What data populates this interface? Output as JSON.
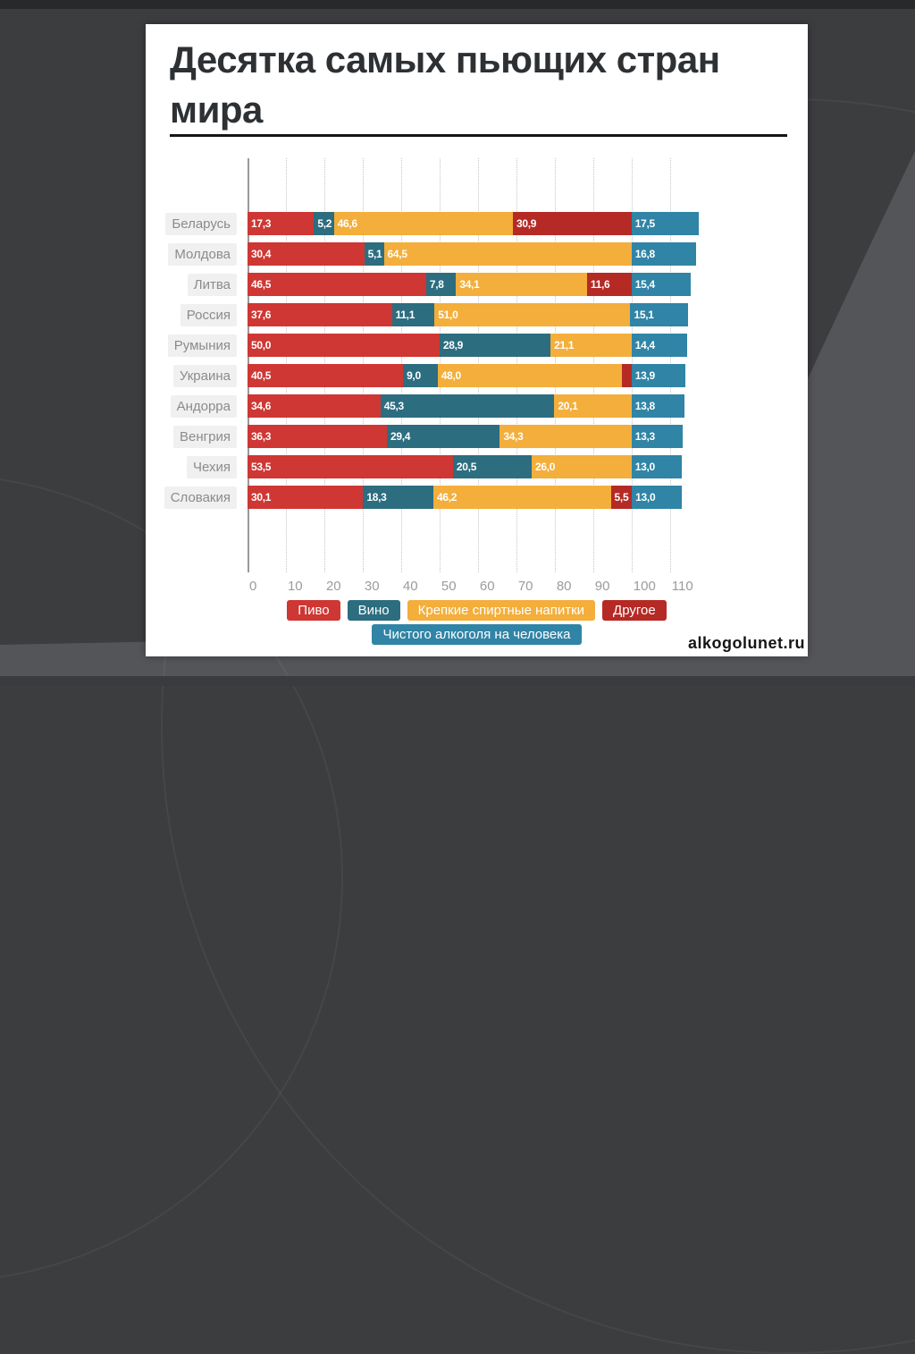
{
  "slide": {
    "title": "Десятка самых пьющих стран мира",
    "watermark": "alkogolunet.ru"
  },
  "chart_data": {
    "type": "bar",
    "orientation": "horizontal",
    "stacked": true,
    "title": "Десятка самых пьющих стран мира",
    "xlabel": "",
    "ylabel": "",
    "axis_max": 117.5,
    "x_ticks": [
      0,
      10,
      20,
      30,
      40,
      50,
      60,
      70,
      80,
      90,
      100,
      110
    ],
    "grid": "dotted-vertical",
    "legend_position": "bottom-center",
    "categories": [
      "Беларусь",
      "Молдова",
      "Литва",
      "Россия",
      "Румыния",
      "Украина",
      "Андорра",
      "Венгрия",
      "Чехия",
      "Словакия"
    ],
    "series": [
      {
        "name": "Пиво",
        "color": "#ce3733",
        "values": [
          17.3,
          30.4,
          46.5,
          37.6,
          50.0,
          40.5,
          34.6,
          36.3,
          53.5,
          30.1
        ],
        "labels": [
          "17,3",
          "30,4",
          "46,5",
          "37,6",
          "50,0",
          "40,5",
          "34,6",
          "36,3",
          "53,5",
          "30,1"
        ]
      },
      {
        "name": "Вино",
        "color": "#2c6d80",
        "values": [
          5.2,
          5.1,
          7.8,
          11.1,
          28.9,
          9.0,
          45.3,
          29.4,
          20.5,
          18.3
        ],
        "labels": [
          "5,2",
          "5,1",
          "7,8",
          "11,1",
          "28,9",
          "9,0",
          "45,3",
          "29,4",
          "20,5",
          "18,3"
        ]
      },
      {
        "name": "Крепкие спиртные напитки",
        "color": "#f3ae3b",
        "values": [
          46.6,
          64.5,
          34.1,
          51.0,
          21.1,
          48.0,
          20.1,
          34.3,
          26.0,
          46.2
        ],
        "labels": [
          "46,6",
          "64,5",
          "34,1",
          "51,0",
          "21,1",
          "48,0",
          "20,1",
          "34,3",
          "26,0",
          "46,2"
        ]
      },
      {
        "name": "Другое",
        "color": "#b52a25",
        "values": [
          30.9,
          0,
          11.6,
          0,
          0,
          2.5,
          0,
          0,
          0,
          5.5
        ],
        "labels": [
          "30,9",
          "",
          "11,6",
          "",
          "",
          "",
          "",
          "",
          "",
          "5,5"
        ]
      },
      {
        "name": "Чистого алкоголя на человека",
        "color": "#3084a6",
        "values": [
          17.5,
          16.8,
          15.4,
          15.1,
          14.4,
          13.9,
          13.8,
          13.3,
          13.0,
          13.0
        ],
        "labels": [
          "17,5",
          "16,8",
          "15,4",
          "15,1",
          "14,4",
          "13,9",
          "13,8",
          "13,3",
          "13,0",
          "13,0"
        ]
      }
    ],
    "legend_rows": [
      [
        "Пиво",
        "Вино",
        "Крепкие спиртные напитки",
        "Другое"
      ],
      [
        "Чистого алкоголя на человека"
      ]
    ]
  }
}
